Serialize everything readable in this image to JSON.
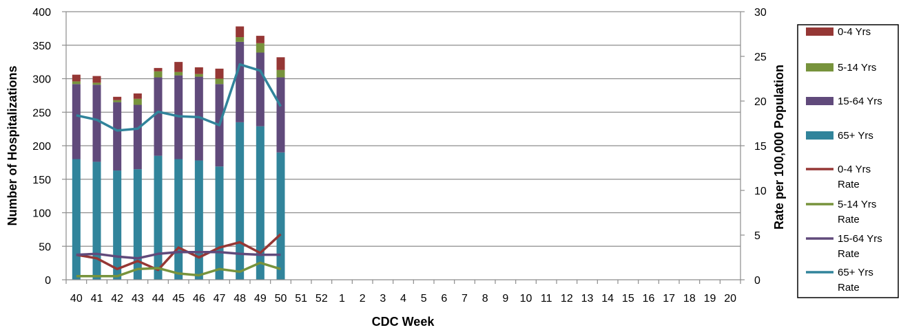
{
  "chart_data": {
    "type": "bar",
    "stacked": true,
    "xlabel": "CDC Week",
    "ylabel": "Number of Hospitalizations",
    "y2label": "Rate per 100,000 Population",
    "ylim": [
      0,
      400
    ],
    "y2lim": [
      0,
      30
    ],
    "yticks": [
      0,
      50,
      100,
      150,
      200,
      250,
      300,
      350,
      400
    ],
    "y2ticks": [
      0,
      5,
      10,
      15,
      20,
      25,
      30
    ],
    "grid": true,
    "legend_position": "right",
    "categories": [
      "40",
      "41",
      "42",
      "43",
      "44",
      "45",
      "46",
      "47",
      "48",
      "49",
      "50",
      "51",
      "52",
      "1",
      "2",
      "3",
      "4",
      "5",
      "6",
      "7",
      "8",
      "9",
      "10",
      "11",
      "12",
      "13",
      "14",
      "15",
      "16",
      "17",
      "18",
      "19",
      "20"
    ],
    "bar_series": [
      {
        "name": "65+ Yrs",
        "color": "#31849B",
        "values": [
          180,
          176,
          163,
          165,
          185,
          180,
          178,
          169,
          235,
          229,
          190
        ]
      },
      {
        "name": "15-64 Yrs",
        "color": "#604A7B",
        "values": [
          112,
          115,
          102,
          96,
          117,
          125,
          125,
          123,
          120,
          110,
          112
        ]
      },
      {
        "name": "5-14 Yrs",
        "color": "#77933C",
        "values": [
          4,
          3,
          3,
          9,
          9,
          5,
          4,
          8,
          7,
          14,
          11
        ]
      },
      {
        "name": "0-4 Yrs",
        "color": "#953735",
        "values": [
          10,
          10,
          5,
          8,
          5,
          15,
          10,
          15,
          16,
          11,
          19
        ]
      }
    ],
    "line_series": [
      {
        "name": "0-4 Yrs Rate",
        "color": "#953735",
        "values": [
          2.8,
          2.4,
          1.2,
          2.1,
          1.1,
          3.6,
          2.5,
          3.6,
          4.2,
          3.0,
          5.1
        ]
      },
      {
        "name": "5-14 Yrs Rate",
        "color": "#77933C",
        "values": [
          0.4,
          0.4,
          0.4,
          1.2,
          1.3,
          0.7,
          0.5,
          1.2,
          0.9,
          1.9,
          1.2
        ]
      },
      {
        "name": "15-64 Yrs Rate",
        "color": "#604A7B",
        "values": [
          2.8,
          2.9,
          2.6,
          2.4,
          2.9,
          3.1,
          3.1,
          3.1,
          2.9,
          2.8,
          2.8
        ]
      },
      {
        "name": "65+ Yrs Rate",
        "color": "#31849B",
        "values": [
          18.4,
          17.9,
          16.7,
          16.9,
          18.8,
          18.3,
          18.2,
          17.3,
          24.1,
          23.4,
          19.4
        ]
      }
    ],
    "legend": [
      {
        "label": "0-4 Yrs",
        "kind": "box",
        "color": "#953735"
      },
      {
        "label": "5-14 Yrs",
        "kind": "box",
        "color": "#77933C"
      },
      {
        "label": "15-64 Yrs",
        "kind": "box",
        "color": "#604A7B"
      },
      {
        "label": "65+ Yrs",
        "kind": "box",
        "color": "#31849B"
      },
      {
        "label": "0-4 Yrs",
        "label2": "Rate",
        "kind": "line",
        "color": "#953735"
      },
      {
        "label": "5-14 Yrs",
        "label2": "Rate",
        "kind": "line",
        "color": "#77933C"
      },
      {
        "label": "15-64 Yrs",
        "label2": "Rate",
        "kind": "line",
        "color": "#604A7B"
      },
      {
        "label": "65+ Yrs",
        "label2": "Rate",
        "kind": "line",
        "color": "#31849B"
      }
    ]
  }
}
